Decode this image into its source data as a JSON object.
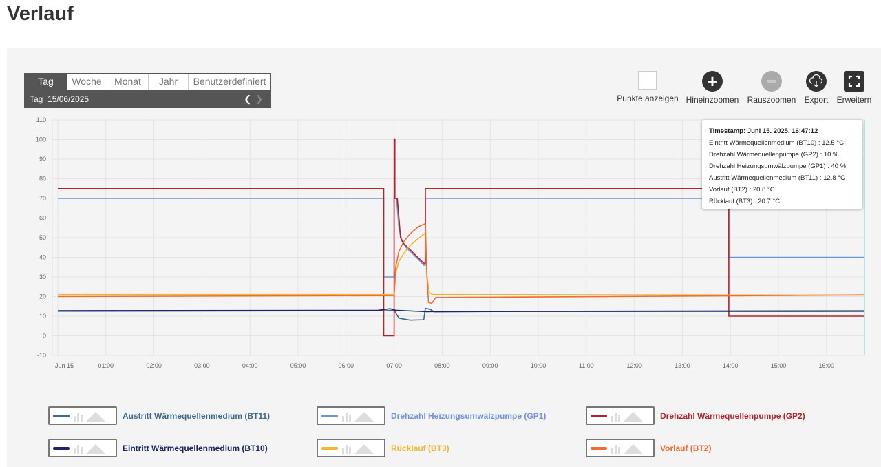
{
  "page_title": "Verlauf",
  "range_tabs": [
    {
      "label": "Tag",
      "active": true
    },
    {
      "label": "Woche"
    },
    {
      "label": "Monat"
    },
    {
      "label": "Jahr"
    },
    {
      "label": "Benutzerdefiniert"
    }
  ],
  "date_label": "Tag",
  "date_value": "15/06/2025",
  "tools": {
    "points": "Punkte anzeigen",
    "zoom_in": "Hineinzoomen",
    "zoom_out": "Rauszoomen",
    "export": "Export",
    "expand": "Erweitern"
  },
  "tooltip": [
    "Timestamp: Juni 15. 2025, 16:47:12",
    "Eintritt Wärmequellenmedium (BT10) : 12.5 °C",
    "Drehzahl Wärmequellenpumpe (GP2) : 10 %",
    "Drehzahl Heizungsumwälzpumpe (GP1) : 40 %",
    "Austritt Wärmequellenmedium (BT11) : 12.8 °C",
    "Vorlauf (BT2) : 20.8 °C",
    "Rücklauf (BT3) : 20.7 °C"
  ],
  "chart_data": {
    "type": "line",
    "ylim": [
      -10,
      110
    ],
    "yticks": [
      -10,
      0,
      10,
      20,
      30,
      40,
      50,
      60,
      70,
      80,
      90,
      100,
      110
    ],
    "xlim_hours": [
      0,
      16.8
    ],
    "xticks": [
      "Jun 15",
      "01:00",
      "02:00",
      "03:00",
      "04:00",
      "05:00",
      "06:00",
      "07:00",
      "08:00",
      "09:00",
      "10:00",
      "11:00",
      "12:00",
      "13:00",
      "14:00",
      "15:00",
      "16:00"
    ],
    "grid": true,
    "legend_placement": "bottom",
    "series": [
      {
        "name": "Austritt Wärmequellenmedium (BT11)",
        "color": "#3d6a8e",
        "points": [
          [
            "00:00",
            12.5
          ],
          [
            "06:50",
            12.8
          ],
          [
            "07:00",
            13
          ],
          [
            "07:06",
            9
          ],
          [
            "07:20",
            8
          ],
          [
            "07:37",
            8.2
          ],
          [
            "07:39",
            14
          ],
          [
            "07:45",
            13.5
          ],
          [
            "07:50",
            12.2
          ],
          [
            "10:00",
            12.5
          ],
          [
            "16:47",
            12.8
          ]
        ]
      },
      {
        "name": "Drehzahl Heizungsumwälzpumpe (GP1)",
        "color": "#6f93d8",
        "points": [
          [
            "00:00",
            70
          ],
          [
            "06:47",
            70
          ],
          [
            "06:47",
            30
          ],
          [
            "07:00",
            30
          ],
          [
            "07:00",
            70
          ],
          [
            "07:03",
            70
          ],
          [
            "07:06",
            55
          ],
          [
            "07:10",
            48
          ],
          [
            "07:15",
            45
          ],
          [
            "07:20",
            43
          ],
          [
            "07:25",
            41
          ],
          [
            "07:30",
            39
          ],
          [
            "07:37",
            36
          ],
          [
            "07:39",
            36
          ],
          [
            "07:39",
            70
          ],
          [
            "13:58",
            70
          ],
          [
            "13:58",
            40
          ],
          [
            "16:47",
            40
          ]
        ]
      },
      {
        "name": "Drehzahl Wärmequellenpumpe (GP2)",
        "color": "#b3232b",
        "points": [
          [
            "00:00",
            75
          ],
          [
            "06:47",
            75
          ],
          [
            "06:47",
            0
          ],
          [
            "07:00",
            0
          ],
          [
            "07:00",
            100
          ],
          [
            "07:01",
            100
          ],
          [
            "07:01",
            70
          ],
          [
            "07:04",
            70
          ],
          [
            "07:08",
            50
          ],
          [
            "07:12",
            47
          ],
          [
            "07:17",
            45
          ],
          [
            "07:22",
            43
          ],
          [
            "07:27",
            41
          ],
          [
            "07:32",
            39
          ],
          [
            "07:37",
            37
          ],
          [
            "07:39",
            37
          ],
          [
            "07:39",
            75
          ],
          [
            "13:58",
            75
          ],
          [
            "13:58",
            10
          ],
          [
            "16:47",
            10
          ]
        ]
      },
      {
        "name": "Eintritt Wärmequellenmedium (BT10)",
        "color": "#1c2466",
        "points": [
          [
            "00:00",
            12.8
          ],
          [
            "06:40",
            13
          ],
          [
            "06:55",
            13.8
          ],
          [
            "07:02",
            13
          ],
          [
            "07:30",
            12.5
          ],
          [
            "07:40",
            12.3
          ],
          [
            "08:00",
            12.4
          ],
          [
            "16:47",
            12.5
          ]
        ]
      },
      {
        "name": "Rücklauf (BT3)",
        "color": "#f0b62e",
        "points": [
          [
            "00:00",
            21
          ],
          [
            "07:00",
            21
          ],
          [
            "07:02",
            32
          ],
          [
            "07:06",
            38
          ],
          [
            "07:12",
            42
          ],
          [
            "07:20",
            46
          ],
          [
            "07:30",
            49.5
          ],
          [
            "07:38",
            52
          ],
          [
            "07:39",
            52
          ],
          [
            "07:41",
            30
          ],
          [
            "07:44",
            22
          ],
          [
            "07:48",
            21
          ],
          [
            "16:47",
            20.7
          ]
        ]
      },
      {
        "name": "Vorlauf (BT2)",
        "color": "#f26b30",
        "points": [
          [
            "00:00",
            20
          ],
          [
            "07:00",
            20.5
          ],
          [
            "07:02",
            35
          ],
          [
            "07:06",
            43
          ],
          [
            "07:12",
            48
          ],
          [
            "07:20",
            52
          ],
          [
            "07:30",
            55.5
          ],
          [
            "07:38",
            57
          ],
          [
            "07:39",
            57
          ],
          [
            "07:41",
            30
          ],
          [
            "07:43",
            17
          ],
          [
            "07:47",
            16.5
          ],
          [
            "07:52",
            19.5
          ],
          [
            "10:00",
            19.8
          ],
          [
            "16:47",
            20.8
          ]
        ]
      }
    ]
  }
}
